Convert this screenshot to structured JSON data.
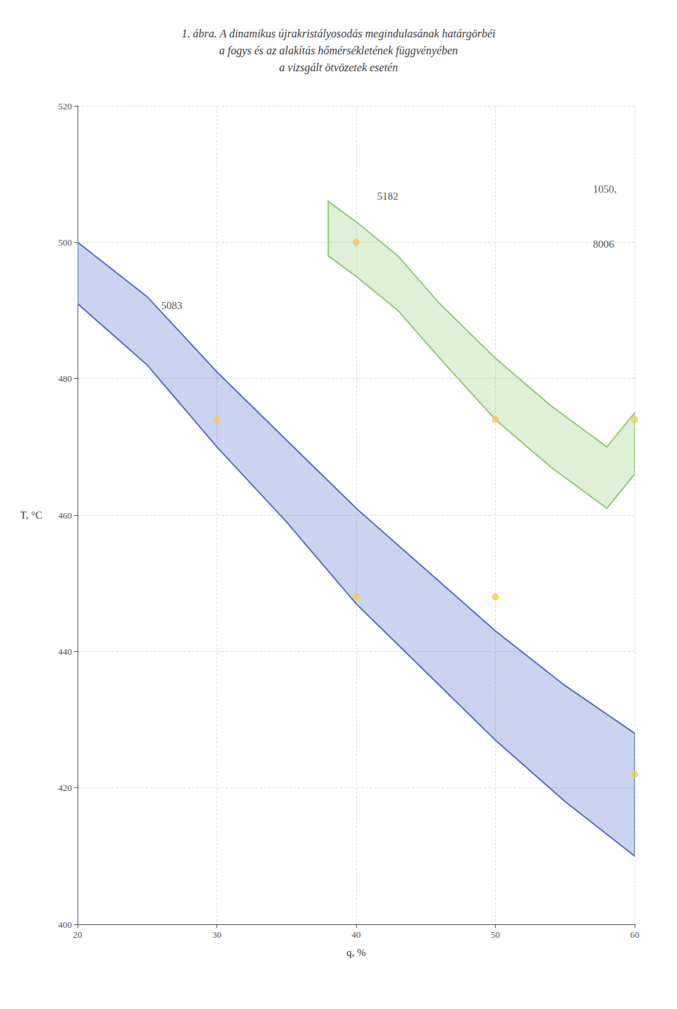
{
  "chart_data": {
    "type": "band",
    "title": "1. ábra. A dinamikus újrakristályosodás megindulasának határgörbéi\na fogys és az alakítás hőmérsékletének függvényében\na vizsgált ötvözetek esetén",
    "xlabel": "q, %",
    "ylabel": "T, °C",
    "xlim": [
      20,
      60
    ],
    "ylim": [
      400,
      520
    ],
    "xticks": [
      20,
      30,
      40,
      50,
      60
    ],
    "yticks": [
      400,
      420,
      440,
      460,
      480,
      500,
      520
    ],
    "grid": true,
    "series": [
      {
        "type": "band",
        "x": [
          20,
          25,
          30,
          35,
          40,
          45,
          50,
          55,
          60
        ],
        "upper": [
          500,
          492,
          481,
          471,
          461,
          452,
          443,
          435,
          428
        ],
        "lower": [
          491,
          482,
          470,
          459,
          447,
          437,
          427,
          418,
          410
        ]
      },
      {
        "type": "band",
        "x": [
          38,
          40,
          43,
          46,
          50,
          54,
          58,
          60
        ],
        "upper": [
          506,
          503,
          498,
          491,
          483,
          476,
          470,
          475
        ],
        "lower": [
          498,
          495,
          490,
          483,
          474,
          467,
          461,
          466
        ]
      },
      {
        "type": "scatter",
        "marker": "circle",
        "x": [
          30,
          40,
          40,
          50,
          50,
          60,
          60
        ],
        "values": [
          474,
          500,
          448,
          474,
          448,
          474,
          422
        ]
      }
    ],
    "annotations": [
      {
        "text": "5083",
        "x": 26,
        "y": 490
      },
      {
        "text": "5182",
        "x": 41.5,
        "y": 506
      },
      {
        "text": "1050,",
        "x": 57.0,
        "y": 507
      },
      {
        "text": "8006",
        "x": 57.0,
        "y": 499
      }
    ]
  }
}
